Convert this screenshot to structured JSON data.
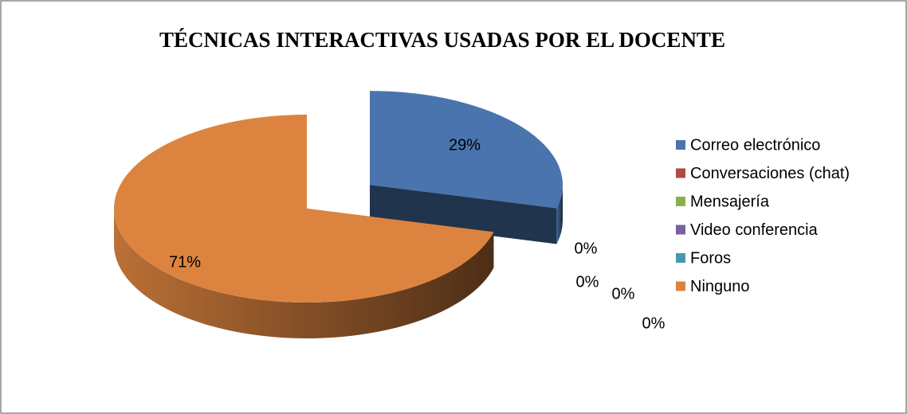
{
  "chart_data": {
    "type": "pie",
    "title": "TÉCNICAS INTERACTIVAS USADAS POR EL DOCENTE",
    "categories": [
      "Correo electrónico",
      "Conversaciones (chat)",
      "Mensajería",
      "Video conferencia",
      "Foros",
      "Ninguno"
    ],
    "values": [
      29,
      0,
      0,
      0,
      0,
      71
    ],
    "value_labels": [
      "29%",
      "0%",
      "0%",
      "0%",
      "0%",
      "71%"
    ],
    "colors": [
      "#4a74ad",
      "#b24a45",
      "#8dae4e",
      "#7960a0",
      "#4699b0",
      "#dc843f"
    ],
    "exploded": [
      0
    ],
    "legend": "right"
  }
}
